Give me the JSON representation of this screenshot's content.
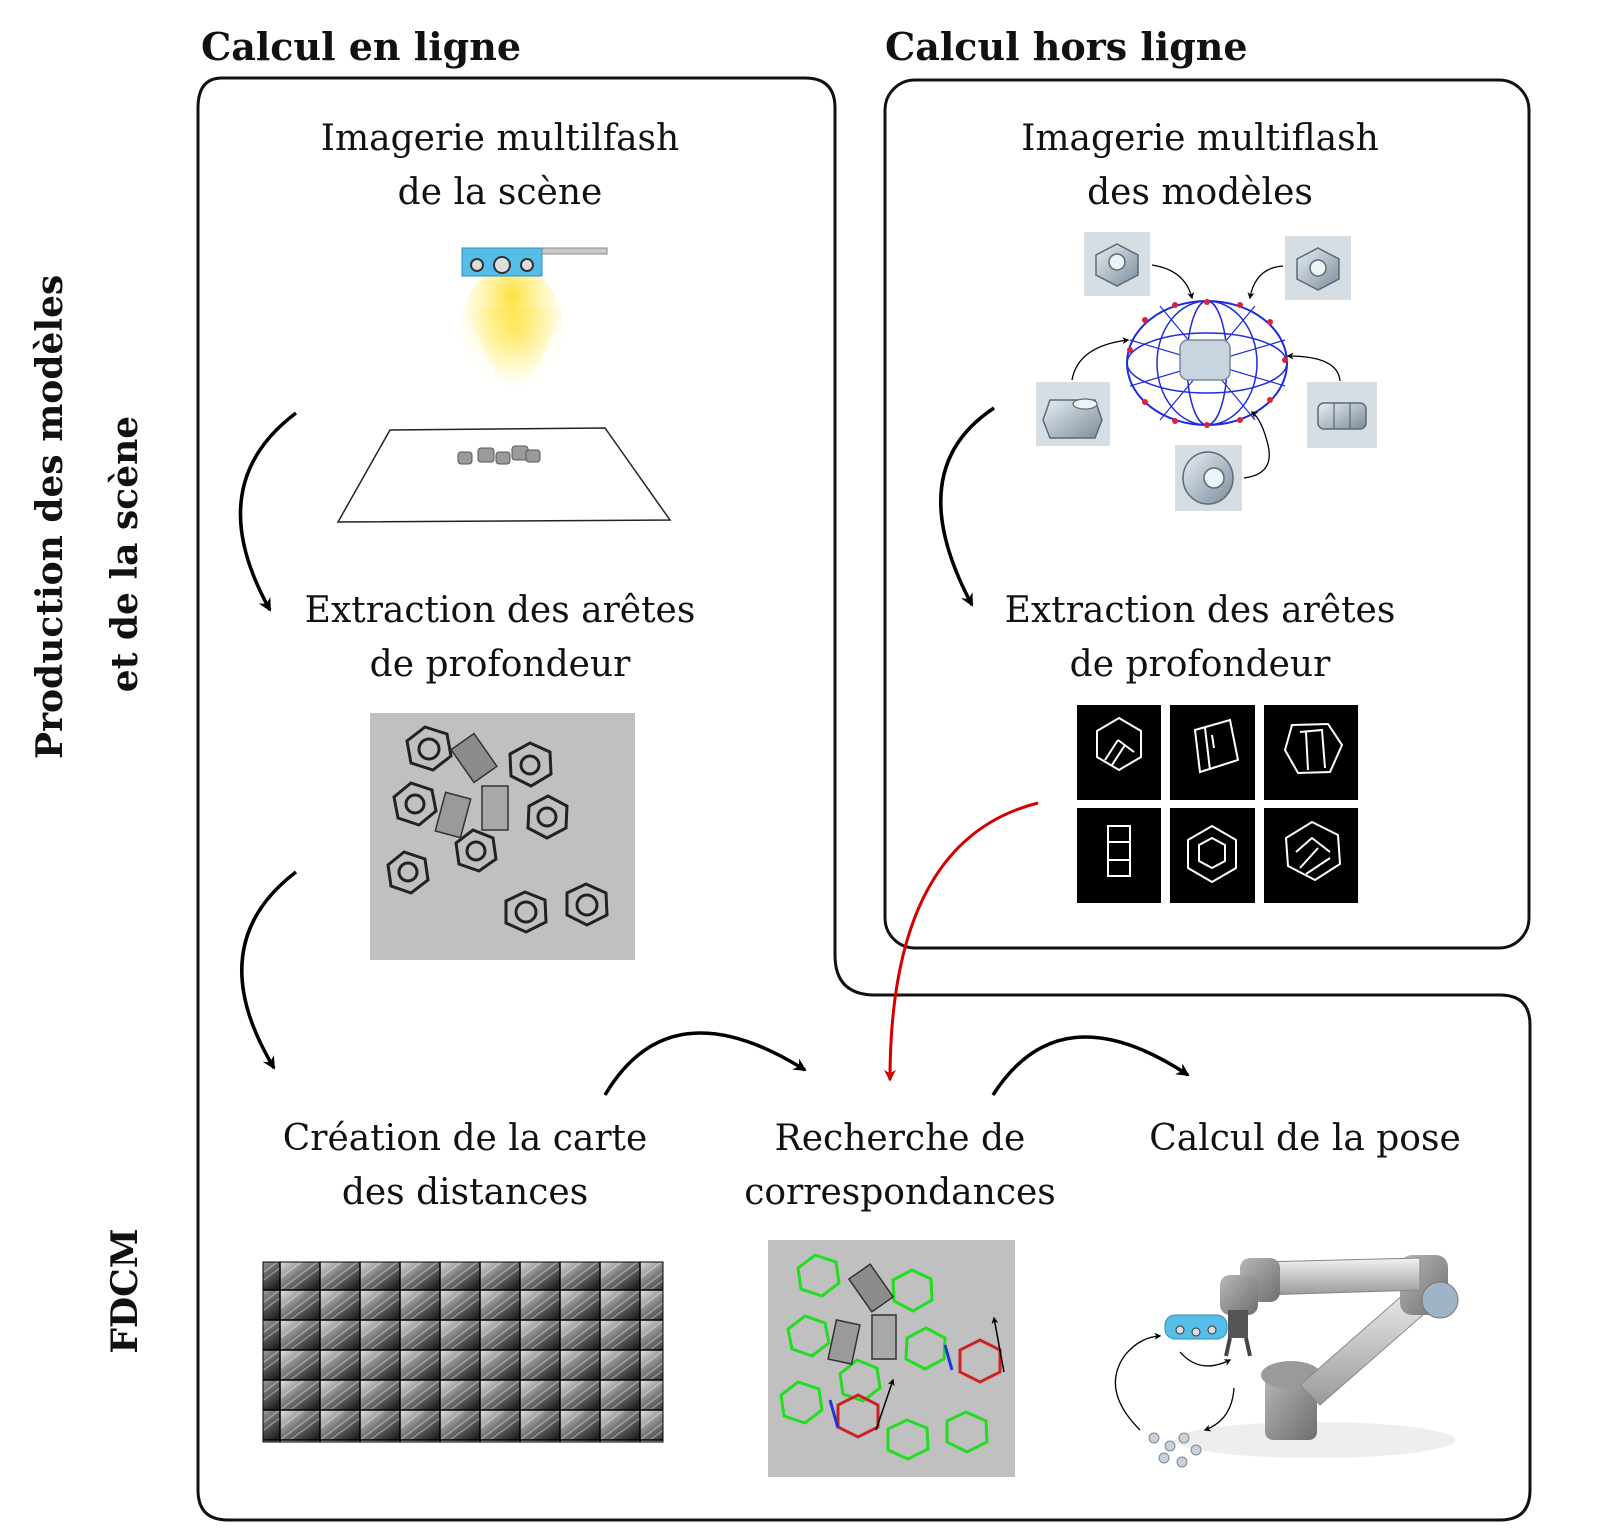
{
  "headers": {
    "online": "Calcul en ligne",
    "offline": "Calcul hors ligne"
  },
  "side_labels": {
    "production_line1": "Production des modèles",
    "production_line2": "et de la scène",
    "fdcm": "FDCM"
  },
  "online_steps": {
    "imaging": [
      "Imagerie multilfash",
      "de la scène"
    ],
    "extraction": [
      "Extraction des arêtes",
      "de profondeur"
    ]
  },
  "offline_steps": {
    "imaging": [
      "Imagerie multiflash",
      "des modèles"
    ],
    "extraction": [
      "Extraction des arêtes",
      "de profondeur"
    ]
  },
  "fdcm_steps": {
    "distance_map": [
      "Création de la carte",
      "des distances"
    ],
    "matching": [
      "Recherche de",
      "correspondances"
    ],
    "pose": [
      "Calcul de la pose"
    ]
  },
  "colors": {
    "box_stroke": "#111111",
    "flow_arrow": "#000000",
    "model_to_matching_arrow": "#d40000",
    "render_bg": "#c0c0c0",
    "edge_bg": "#000000",
    "match_green": "#22dd22",
    "match_red": "#cc2222",
    "match_blue": "#2233dd",
    "camera_blue": "#55bde8",
    "light_yellow": "#ffe030",
    "sphere_blue": "#1f2bd8",
    "sphere_red": "#e0203a"
  }
}
